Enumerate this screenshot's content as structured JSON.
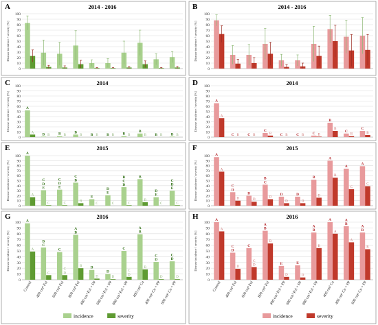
{
  "figure": {
    "ylabel": "Disease incidence / severity [%]",
    "yticks": [
      0,
      10,
      20,
      30,
      40,
      50,
      60,
      70,
      80,
      90,
      100
    ],
    "treatments": [
      "Control",
      "400 cm³ Fol",
      "600 cm³ Fol",
      "800 cm³ Fol",
      "400 cm³ Fol + PP",
      "600 cm³ Fol + PP",
      "800 cm³ Fol + PP",
      "400 cm³ Cu",
      "400 cm³ Cu + PP",
      "600 cm³ Cu + PP"
    ],
    "legend_left": [
      "incidence",
      "severity"
    ],
    "legend_right": [
      "incidence",
      "severity"
    ],
    "colors": {
      "green_light": "#a9d18e",
      "green_dark": "#5f9b32",
      "red_light": "#e89a9c",
      "red_dark": "#c0392b",
      "letter_green": "#2e6e12",
      "letter_red": "#b3262a"
    }
  },
  "chart_data": [
    {
      "panel": "A",
      "type": "bar",
      "title": "2014 - 2016",
      "ylim": [
        0,
        100
      ],
      "grid": true,
      "categories": [
        "Control",
        "400 cm³ Fol",
        "600 cm³ Fol",
        "800 cm³ Fol",
        "400 cm³ Fol + PP",
        "600 cm³ Fol + PP",
        "800 cm³ Fol + PP",
        "400 cm³ Cu",
        "400 cm³ Cu + PP",
        "600 cm³ Cu + PP"
      ],
      "series": [
        {
          "name": "incidence",
          "values": [
            83,
            29,
            27,
            42,
            10,
            10,
            29,
            47,
            17,
            21
          ],
          "errors": [
            13,
            23,
            21,
            27,
            6,
            8,
            21,
            23,
            10,
            10
          ]
        },
        {
          "name": "severity",
          "values": [
            23,
            3,
            2,
            8,
            1,
            1,
            2,
            8,
            1,
            2
          ],
          "errors": [
            11,
            3,
            3,
            7,
            1,
            1,
            2,
            6,
            1,
            2
          ]
        }
      ],
      "letters": [
        [
          "",
          ""
        ],
        [
          "",
          ""
        ],
        [
          "",
          ""
        ],
        [
          "",
          ""
        ],
        [
          "",
          ""
        ],
        [
          "",
          ""
        ],
        [
          "",
          ""
        ],
        [
          "",
          ""
        ],
        [
          "",
          ""
        ],
        [
          "",
          ""
        ]
      ]
    },
    {
      "panel": "B",
      "type": "bar",
      "title": "2014 - 2016",
      "ylim": [
        0,
        100
      ],
      "grid": true,
      "categories": [
        "Control",
        "400 cm³ Fol",
        "600 cm³ Fol",
        "800 cm³ Fol",
        "400 cm³ Fol + PP",
        "600 cm³ Fol + PP",
        "800 cm³ Fol + PP",
        "400 cm³ Cu",
        "400 cm³ Cu + PP",
        "600 cm³ Cu + PP"
      ],
      "series": [
        {
          "name": "incidence",
          "values": [
            88,
            25,
            25,
            45,
            15,
            15,
            45,
            72,
            58,
            60
          ],
          "errors": [
            10,
            17,
            19,
            28,
            11,
            10,
            32,
            25,
            30,
            33
          ]
        },
        {
          "name": "severity",
          "values": [
            63,
            9,
            10,
            27,
            3,
            4,
            23,
            50,
            33,
            34
          ],
          "errors": [
            15,
            8,
            10,
            21,
            4,
            6,
            18,
            29,
            29,
            28
          ]
        }
      ],
      "letters": [
        [
          "",
          ""
        ],
        [
          "",
          ""
        ],
        [
          "",
          ""
        ],
        [
          "",
          ""
        ],
        [
          "",
          ""
        ],
        [
          "",
          ""
        ],
        [
          "",
          ""
        ],
        [
          "",
          ""
        ],
        [
          "",
          ""
        ],
        [
          "",
          ""
        ]
      ]
    },
    {
      "panel": "C",
      "type": "bar",
      "title": "2014",
      "ylim": [
        0,
        100
      ],
      "grid": true,
      "categories": [
        "Control",
        "400 cm³ Fol",
        "600 cm³ Fol",
        "800 cm³ Fol",
        "400 cm³ Fol + PP",
        "600 cm³ Fol + PP",
        "800 cm³ Fol + PP",
        "400 cm³ Cu",
        "400 cm³ Cu + PP",
        "600 cm³ Cu + PP"
      ],
      "series": [
        {
          "name": "incidence",
          "values": [
            52,
            1,
            2,
            5,
            0,
            0,
            2,
            7,
            0,
            1
          ]
        },
        {
          "name": "severity",
          "values": [
            5,
            0,
            0,
            0,
            0,
            0,
            0,
            0,
            0,
            0
          ]
        }
      ],
      "letters": [
        [
          "A",
          "A"
        ],
        [
          "B",
          "B"
        ],
        [
          "B",
          "B"
        ],
        [
          "B",
          "B"
        ],
        [
          "B",
          "B"
        ],
        [
          "B",
          "B"
        ],
        [
          "B",
          "B"
        ],
        [
          "B",
          "B"
        ],
        [
          "B",
          "B"
        ],
        [
          "B",
          "B"
        ]
      ]
    },
    {
      "panel": "D",
      "type": "bar",
      "title": "2014",
      "ylim": [
        0,
        100
      ],
      "grid": true,
      "categories": [
        "Control",
        "400 cm³ Fol",
        "600 cm³ Fol",
        "800 cm³ Fol",
        "400 cm³ Fol + PP",
        "600 cm³ Fol + PP",
        "800 cm³ Fol + PP",
        "400 cm³ Cu",
        "400 cm³ Cu + PP",
        "600 cm³ Cu + PP"
      ],
      "series": [
        {
          "name": "incidence",
          "values": [
            66,
            0,
            0,
            8,
            0,
            0,
            3,
            28,
            7,
            12
          ]
        },
        {
          "name": "severity",
          "values": [
            37,
            0,
            0,
            3,
            0,
            0,
            1,
            12,
            2,
            4
          ]
        }
      ],
      "letters": [
        [
          "A",
          "A"
        ],
        [
          "C",
          "B"
        ],
        [
          "C",
          "B"
        ],
        [
          "C",
          "B"
        ],
        [
          "C",
          "B"
        ],
        [
          "C",
          "B"
        ],
        [
          "C",
          "B"
        ],
        [
          "B",
          "B"
        ],
        [
          "C",
          "B"
        ],
        [
          "C",
          "B"
        ]
      ]
    },
    {
      "panel": "E",
      "type": "bar",
      "title": "2015",
      "ylim": [
        0,
        100
      ],
      "grid": true,
      "categories": [
        "Control",
        "400 cm³ Fol",
        "600 cm³ Fol",
        "800 cm³ Fol",
        "400 cm³ Fol + PP",
        "600 cm³ Fol + PP",
        "800 cm³ Fol + PP",
        "400 cm³ Cu",
        "400 cm³ Cu + PP",
        "600 cm³ Cu + PP"
      ],
      "series": [
        {
          "name": "incidence",
          "values": [
            100,
            31,
            32,
            46,
            13,
            21,
            37,
            53,
            17,
            30
          ]
        },
        {
          "name": "severity",
          "values": [
            17,
            1,
            1,
            5,
            0,
            0,
            1,
            7,
            0,
            1
          ]
        }
      ],
      "letters": [
        [
          "A",
          "A"
        ],
        [
          "C D E",
          "C"
        ],
        [
          "C D E",
          "C"
        ],
        [
          "C B",
          "B"
        ],
        [
          "E",
          "C"
        ],
        [
          "D E",
          "C"
        ],
        [
          "B C D",
          "C"
        ],
        [
          "B",
          "B"
        ],
        [
          "D E",
          "C"
        ],
        [
          "C D E",
          "C"
        ]
      ]
    },
    {
      "panel": "F",
      "type": "bar",
      "title": "2015",
      "ylim": [
        0,
        100
      ],
      "grid": true,
      "categories": [
        "Control",
        "400 cm³ Fol",
        "600 cm³ Fol",
        "800 cm³ Fol",
        "400 cm³ Fol + PP",
        "600 cm³ Fol + PP",
        "800 cm³ Fol + PP",
        "400 cm³ Cu",
        "400 cm³ Cu + PP",
        "600 cm³ Cu + PP"
      ],
      "series": [
        {
          "name": "incidence",
          "values": [
            97,
            27,
            20,
            42,
            18,
            18,
            52,
            90,
            74,
            79
          ]
        },
        {
          "name": "severity",
          "values": [
            68,
            10,
            8,
            13,
            5,
            5,
            16,
            56,
            33,
            39
          ]
        }
      ],
      "letters": [
        [
          "A",
          "A"
        ],
        [
          "C D",
          "D"
        ],
        [
          "D",
          "D"
        ],
        [
          "B C",
          "D"
        ],
        [
          "D",
          "D"
        ],
        [
          "D",
          "D"
        ],
        [
          "B",
          "D"
        ],
        [
          "A",
          "B"
        ],
        [
          "A",
          "C"
        ],
        [
          "A",
          "C"
        ]
      ]
    },
    {
      "panel": "G",
      "type": "bar",
      "title": "2016",
      "ylim": [
        0,
        100
      ],
      "grid": true,
      "categories": [
        "Control",
        "400 cm³ Fol",
        "600 cm³ Fol",
        "800 cm³ Fol",
        "400 cm³ Fol + PP",
        "600 cm³ Fol + PP",
        "800 cm³ Fol + PP",
        "400 cm³ Cu",
        "400 cm³ Cu + PP",
        "600 cm³ Cu + PP"
      ],
      "series": [
        {
          "name": "incidence",
          "values": [
            98,
            56,
            48,
            78,
            17,
            10,
            50,
            79,
            31,
            32
          ]
        },
        {
          "name": "severity",
          "values": [
            49,
            8,
            8,
            20,
            2,
            1,
            5,
            18,
            1,
            1
          ]
        }
      ],
      "letters": [
        [
          "A",
          "A"
        ],
        [
          "B C",
          "C"
        ],
        [
          "C",
          "C D"
        ],
        [
          "A B",
          "B"
        ],
        [
          "D",
          "D"
        ],
        [
          "D",
          "D"
        ],
        [
          "C",
          "C D"
        ],
        [
          "A B",
          "B"
        ],
        [
          "C D",
          "D"
        ],
        [
          "C D",
          "D"
        ]
      ]
    },
    {
      "panel": "H",
      "type": "bar",
      "title": "2016",
      "ylim": [
        0,
        100
      ],
      "grid": true,
      "categories": [
        "Control",
        "400 cm³ Fol",
        "600 cm³ Fol",
        "800 cm³ Fol",
        "400 cm³ Fol + PP",
        "600 cm³ Fol + PP",
        "800 cm³ Fol + PP",
        "400 cm³ Cu",
        "400 cm³ Cu + PP",
        "600 cm³ Cu + PP"
      ],
      "series": [
        {
          "name": "incidence",
          "values": [
            100,
            47,
            55,
            85,
            24,
            25,
            82,
            100,
            93,
            82
          ]
        },
        {
          "name": "severity",
          "values": [
            84,
            19,
            22,
            63,
            5,
            4,
            55,
            80,
            65,
            53
          ]
        }
      ],
      "letters": [
        [
          "A",
          "A"
        ],
        [
          "C D",
          "D"
        ],
        [
          "C",
          "C D"
        ],
        [
          "A B",
          "B"
        ],
        [
          "E",
          "D"
        ],
        [
          "E",
          "D"
        ],
        [
          "A B",
          "B"
        ],
        [
          "A",
          "A"
        ],
        [
          "A B",
          "A"
        ],
        [
          "A B",
          "B"
        ]
      ]
    }
  ]
}
